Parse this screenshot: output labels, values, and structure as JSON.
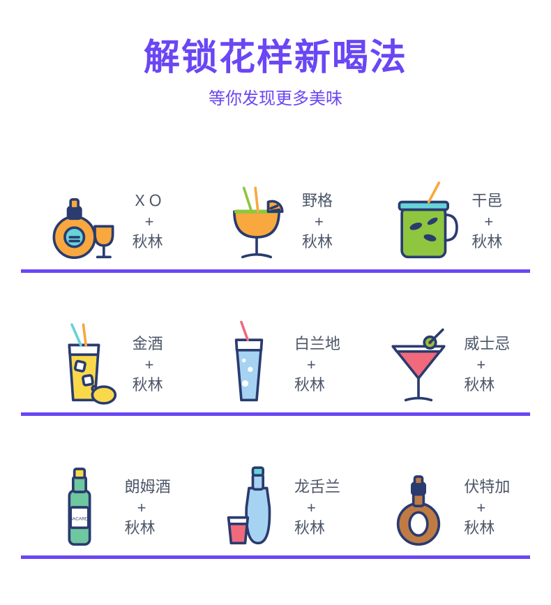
{
  "colors": {
    "accent": "#6a46f4",
    "title": "#6a46f4",
    "subtitle": "#6a46f4",
    "underline": "#6a46f4",
    "label_text": "#4b5567",
    "background": "#ffffff",
    "stroke": "#2a3b6f",
    "orange": "#f8a83e",
    "green": "#8ec63f",
    "cyan": "#66d3d8",
    "blue_light": "#a7d3f2",
    "yellow": "#f9d94a",
    "pink": "#f06a7c",
    "brown": "#c07b45",
    "red": "#e74c3c",
    "bottle_green": "#6fc7a0",
    "white": "#ffffff"
  },
  "header": {
    "title": "解锁花样新喝法",
    "subtitle": "等你发现更多美味",
    "title_fontsize": 52,
    "subtitle_fontsize": 24
  },
  "layout": {
    "underline_width": 5,
    "icon_stroke_width": 4
  },
  "common_brand": "秋林",
  "plus_sign": "+",
  "drinks": [
    {
      "icon": "xo-bottle-glass-icon",
      "line1": "ＸＯ",
      "line3": "秋林"
    },
    {
      "icon": "margarita-icon",
      "line1": "野格",
      "line3": "秋林"
    },
    {
      "icon": "mason-jar-icon",
      "line1": "干邑",
      "line3": "秋林"
    },
    {
      "icon": "highball-lemon-icon",
      "line1": "金酒",
      "line3": "秋林"
    },
    {
      "icon": "tall-glass-icon",
      "line1": "白兰地",
      "line3": "秋林"
    },
    {
      "icon": "martini-icon",
      "line1": "威士忌",
      "line3": "秋林"
    },
    {
      "icon": "rum-bottle-icon",
      "line1": "朗姆酒",
      "line3": "秋林"
    },
    {
      "icon": "tequila-shot-icon",
      "line1": "龙舌兰",
      "line3": "秋林"
    },
    {
      "icon": "cognac-bottle-icon",
      "line1": "伏特加",
      "line3": "秋林"
    }
  ]
}
